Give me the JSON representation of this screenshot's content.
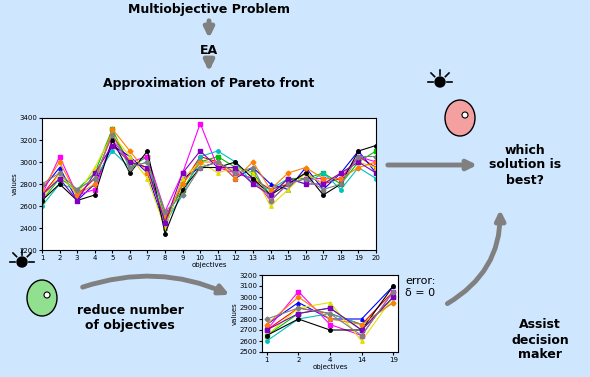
{
  "texts": {
    "problem": "Multiobjective Problem",
    "algorithm": "EA",
    "question": "which\nsolution is\nbest?",
    "reduce": "reduce number\nof objectives",
    "error": "error:\nδ = 0",
    "assist": "Assist\ndecision\nmaker"
  },
  "chart_data": [
    {
      "type": "line",
      "title": "Approximation of Pareto front",
      "x_label": "objectives",
      "y_label": "values",
      "x": [
        1,
        2,
        3,
        4,
        5,
        6,
        7,
        8,
        9,
        10,
        11,
        12,
        13,
        14,
        15,
        16,
        17,
        18,
        19,
        20
      ],
      "xlim": [
        1,
        20
      ],
      "xticks": [
        1,
        2,
        3,
        4,
        5,
        6,
        7,
        8,
        9,
        10,
        11,
        12,
        13,
        14,
        15,
        16,
        17,
        18,
        19,
        20
      ],
      "ylim": [
        2200,
        3400
      ],
      "yticks": [
        2200,
        2400,
        2600,
        2800,
        3000,
        3200,
        3400
      ],
      "line_style": "solid",
      "series": [
        {
          "color": "#ff0000",
          "marker": "circle",
          "values": [
            2700,
            2900,
            2700,
            2850,
            3250,
            3000,
            2950,
            2450,
            2800,
            3050,
            3000,
            2900,
            2850,
            2750,
            2800,
            2900,
            2800,
            2850,
            3050,
            2950
          ]
        },
        {
          "color": "#00c000",
          "marker": "square",
          "values": [
            2650,
            2850,
            2750,
            2900,
            3300,
            2950,
            3050,
            2500,
            2750,
            3000,
            3050,
            2950,
            2900,
            2700,
            2850,
            2850,
            2900,
            2800,
            3000,
            3100
          ]
        },
        {
          "color": "#0000ff",
          "marker": "triangle",
          "values": [
            2750,
            2950,
            2650,
            2800,
            3150,
            3050,
            2900,
            2400,
            2850,
            2950,
            3000,
            2850,
            2950,
            2800,
            2750,
            2950,
            2750,
            2900,
            3100,
            2900
          ]
        },
        {
          "color": "#ff00ff",
          "marker": "square",
          "values": [
            2700,
            3050,
            2700,
            2750,
            3200,
            3000,
            3050,
            2550,
            2900,
            3350,
            2950,
            2900,
            2850,
            2650,
            2800,
            2850,
            2850,
            2850,
            3050,
            3000
          ]
        },
        {
          "color": "#00c0c0",
          "marker": "circle",
          "values": [
            2600,
            2800,
            2750,
            2850,
            3100,
            2950,
            3000,
            2450,
            2700,
            3050,
            3100,
            3000,
            2800,
            2750,
            2850,
            2800,
            2900,
            2750,
            2950,
            2850
          ]
        },
        {
          "color": "#e0e000",
          "marker": "triangle",
          "values": [
            2650,
            2900,
            2700,
            2950,
            3250,
            3050,
            2850,
            2400,
            2850,
            3000,
            2900,
            2950,
            2900,
            2600,
            2750,
            2900,
            2800,
            2900,
            3000,
            2950
          ]
        },
        {
          "color": "#000000",
          "marker": "circle",
          "values": [
            2650,
            2800,
            2650,
            2700,
            3200,
            2900,
            3100,
            2350,
            2750,
            2950,
            2950,
            3000,
            2850,
            2700,
            2800,
            2900,
            2700,
            2800,
            3100,
            3150
          ]
        },
        {
          "color": "#ff8000",
          "marker": "diamond",
          "values": [
            2750,
            3000,
            2700,
            2800,
            3300,
            3100,
            2900,
            2500,
            2800,
            3000,
            3000,
            2850,
            3000,
            2750,
            2900,
            2950,
            2850,
            2850,
            2950,
            3000
          ]
        },
        {
          "color": "#8000c0",
          "marker": "square",
          "values": [
            2700,
            2850,
            2650,
            2900,
            3150,
            3000,
            2950,
            2450,
            2900,
            3100,
            2950,
            2950,
            2800,
            2700,
            2850,
            2800,
            2800,
            2900,
            3000,
            2900
          ]
        },
        {
          "color": "#808080",
          "marker": "diamond",
          "values": [
            2800,
            2900,
            2750,
            2850,
            3250,
            2950,
            3000,
            2550,
            2700,
            2950,
            3000,
            2900,
            2950,
            2650,
            2800,
            2850,
            2750,
            2800,
            3050,
            3050
          ]
        }
      ]
    },
    {
      "type": "line",
      "x_label": "objectives",
      "y_label": "values",
      "categories": [
        "1",
        "2",
        "4",
        "14",
        "19"
      ],
      "ylim": [
        2500,
        3200
      ],
      "yticks": [
        2500,
        2600,
        2700,
        2800,
        2900,
        3000,
        3100,
        3200
      ],
      "line_style": "solid",
      "series": [
        {
          "color": "#ff0000",
          "marker": "circle",
          "values": [
            2700,
            2900,
            2850,
            2750,
            3050
          ]
        },
        {
          "color": "#00c000",
          "marker": "square",
          "values": [
            2650,
            2850,
            2900,
            2700,
            3000
          ]
        },
        {
          "color": "#0000ff",
          "marker": "triangle",
          "values": [
            2750,
            2950,
            2800,
            2800,
            3100
          ]
        },
        {
          "color": "#ff00ff",
          "marker": "square",
          "values": [
            2700,
            3050,
            2750,
            2650,
            3050
          ]
        },
        {
          "color": "#00c0c0",
          "marker": "circle",
          "values": [
            2600,
            2800,
            2850,
            2750,
            2950
          ]
        },
        {
          "color": "#e0e000",
          "marker": "triangle",
          "values": [
            2650,
            2900,
            2950,
            2600,
            3000
          ]
        },
        {
          "color": "#000000",
          "marker": "circle",
          "values": [
            2650,
            2800,
            2700,
            2700,
            3100
          ]
        },
        {
          "color": "#ff8000",
          "marker": "diamond",
          "values": [
            2750,
            3000,
            2800,
            2750,
            2950
          ]
        },
        {
          "color": "#8000c0",
          "marker": "square",
          "values": [
            2700,
            2850,
            2900,
            2700,
            3000
          ]
        },
        {
          "color": "#808080",
          "marker": "diamond",
          "values": [
            2800,
            2900,
            2850,
            2650,
            3050
          ]
        }
      ]
    }
  ]
}
